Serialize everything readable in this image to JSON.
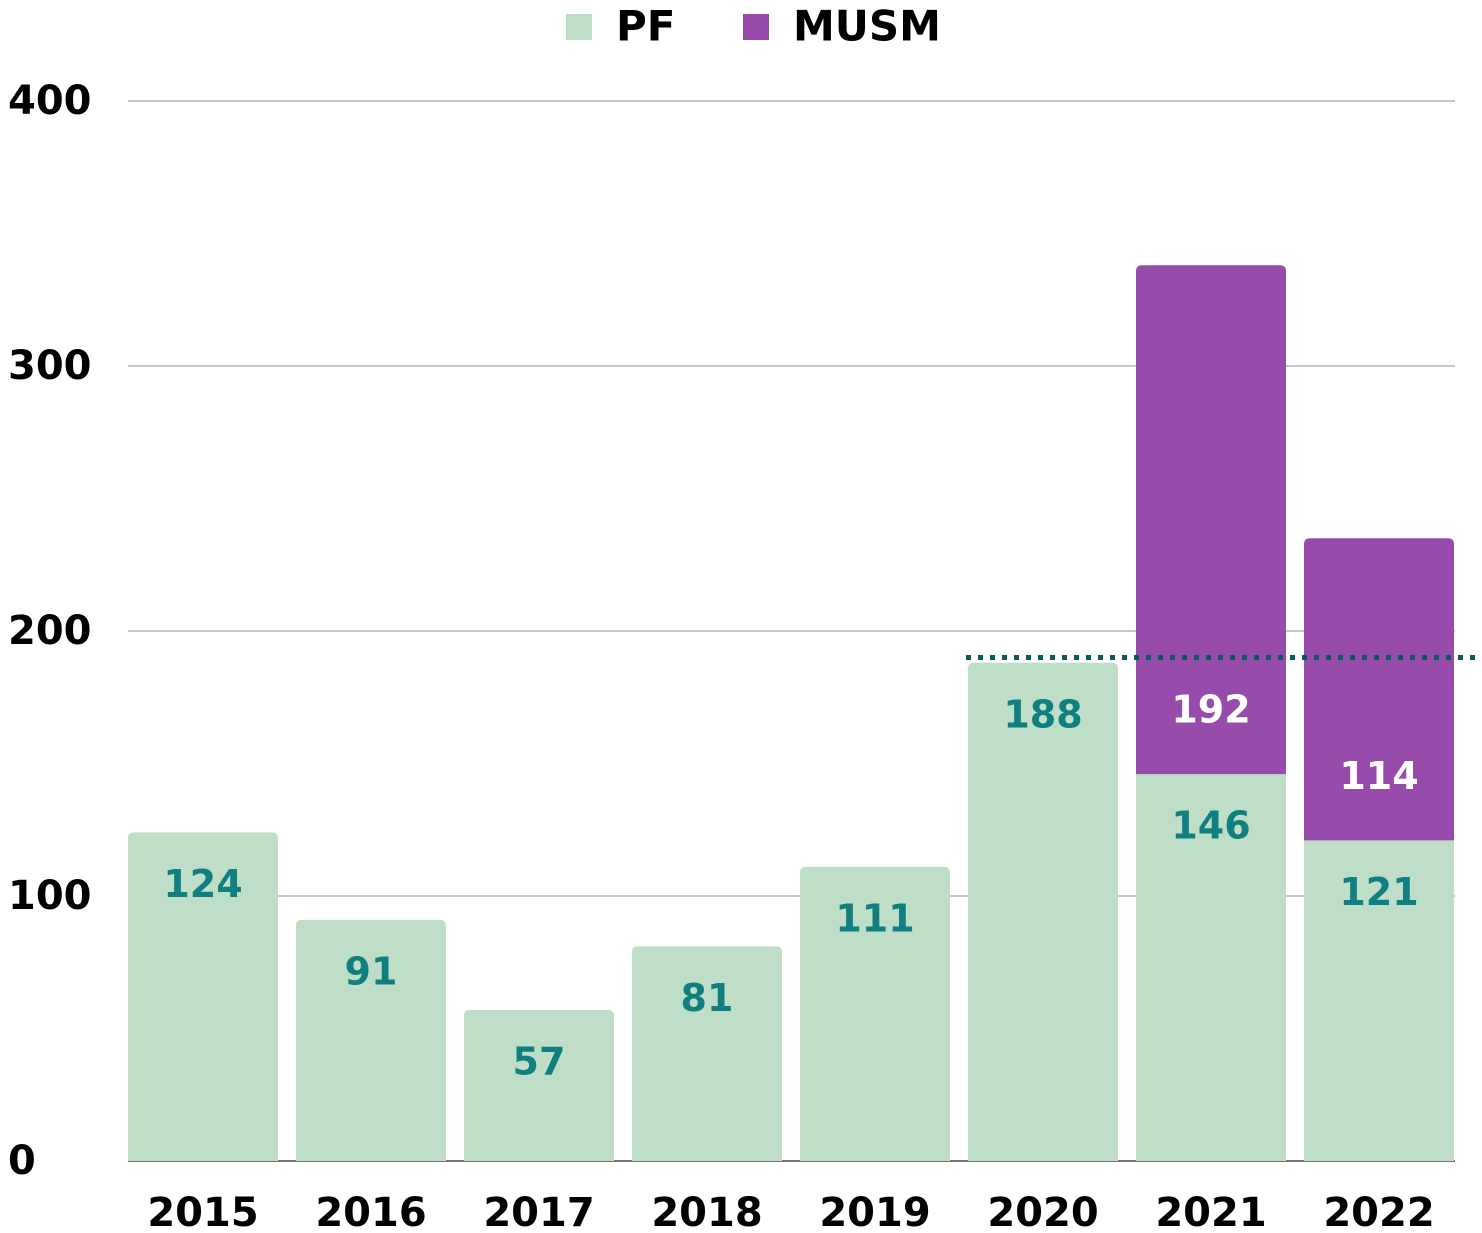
{
  "chart_data": {
    "type": "stacked_bar",
    "categories": [
      "2015",
      "2016",
      "2017",
      "2018",
      "2019",
      "2020",
      "2021",
      "2022"
    ],
    "series": [
      {
        "name": "PF",
        "color": "#bfdec8",
        "label_color": "#0f7f7f",
        "values": [
          124,
          91,
          57,
          81,
          111,
          188,
          146,
          121
        ]
      },
      {
        "name": "MUSM",
        "color": "#974bab",
        "label_color": "#ffffff",
        "values": [
          null,
          null,
          null,
          null,
          null,
          null,
          192,
          114
        ]
      }
    ],
    "ylim": [
      0,
      400
    ],
    "yticks": [
      0,
      100,
      200,
      300,
      400
    ],
    "grid": true,
    "legend": "top",
    "reference_line": 190
  }
}
